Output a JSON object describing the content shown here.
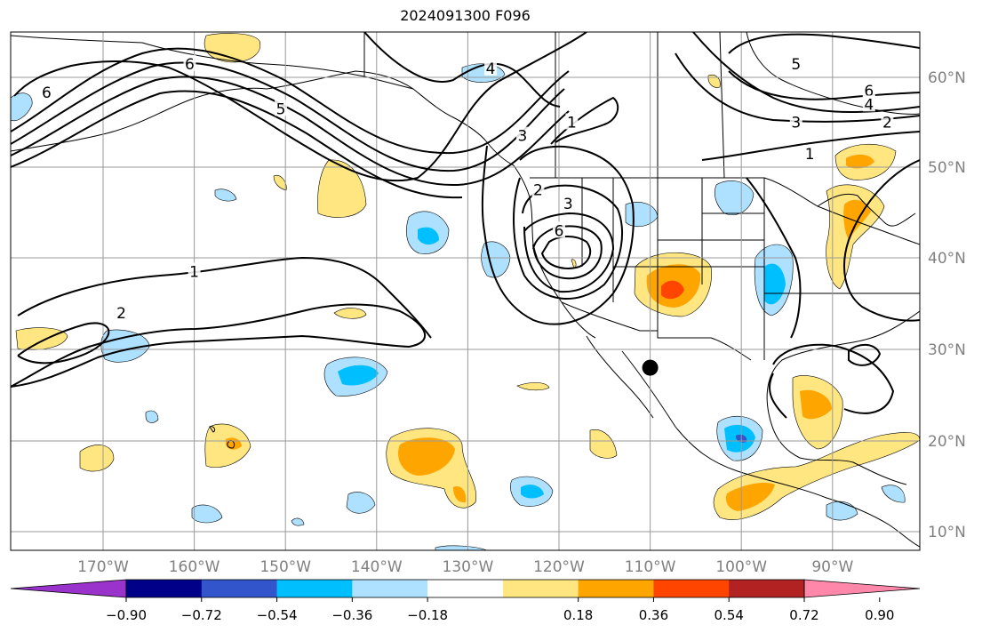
{
  "title": "2024091300 F096",
  "map": {
    "lon_ticks": [
      {
        "lon": -170,
        "label": "170°W"
      },
      {
        "lon": -160,
        "label": "160°W"
      },
      {
        "lon": -150,
        "label": "150°W"
      },
      {
        "lon": -140,
        "label": "140°W"
      },
      {
        "lon": -130,
        "label": "130°W"
      },
      {
        "lon": -120,
        "label": "120°W"
      },
      {
        "lon": -110,
        "label": "110°W"
      },
      {
        "lon": -100,
        "label": "100°W"
      },
      {
        "lon": -90,
        "label": "90°W"
      }
    ],
    "lat_ticks": [
      {
        "lat": 60,
        "label": "60°N"
      },
      {
        "lat": 50,
        "label": "50°N"
      },
      {
        "lat": 40,
        "label": "40°N"
      },
      {
        "lat": 30,
        "label": "30°N"
      },
      {
        "lat": 20,
        "label": "20°N"
      },
      {
        "lat": 10,
        "label": "10°N"
      }
    ],
    "contour_labels": [
      {
        "text": "6",
        "lon": -160.5,
        "lat": 61.5
      },
      {
        "text": "6",
        "lon": -176.2,
        "lat": 58.3
      },
      {
        "text": "5",
        "lon": -150.5,
        "lat": 56.5
      },
      {
        "text": "4",
        "lon": -127.5,
        "lat": 61.0
      },
      {
        "text": "3",
        "lon": -124.0,
        "lat": 53.5
      },
      {
        "text": "1",
        "lon": -118.6,
        "lat": 55.0
      },
      {
        "text": "2",
        "lon": -122.3,
        "lat": 47.5
      },
      {
        "text": "3",
        "lon": -119.0,
        "lat": 46.0
      },
      {
        "text": "6",
        "lon": -120.0,
        "lat": 43.0
      },
      {
        "text": "1",
        "lon": -160.0,
        "lat": 38.5
      },
      {
        "text": "2",
        "lon": -168.0,
        "lat": 34.0
      },
      {
        "text": "5",
        "lon": -94.0,
        "lat": 61.5
      },
      {
        "text": "6",
        "lon": -86.0,
        "lat": 58.5
      },
      {
        "text": "4",
        "lon": -86.0,
        "lat": 57.0
      },
      {
        "text": "3",
        "lon": -94.0,
        "lat": 55.0
      },
      {
        "text": "2",
        "lon": -84.0,
        "lat": 55.0
      },
      {
        "text": "1",
        "lon": -92.5,
        "lat": 51.5
      }
    ],
    "marker": {
      "name": "point marker",
      "lon": -110.0,
      "lat": 28.0
    }
  },
  "colorbar": {
    "ticks": [
      "−0.90",
      "−0.72",
      "−0.54",
      "−0.36",
      "−0.18",
      "0.18",
      "0.36",
      "0.54",
      "0.72",
      "0.90"
    ],
    "colors": {
      "under": "#9933cc",
      "bins": [
        "#000088",
        "#3355cc",
        "#00bfff",
        "#aee0ff",
        "#ffffff",
        "#ffe680",
        "#ffa500",
        "#ff4500",
        "#b22222"
      ],
      "over": "#ff88aa"
    }
  }
}
